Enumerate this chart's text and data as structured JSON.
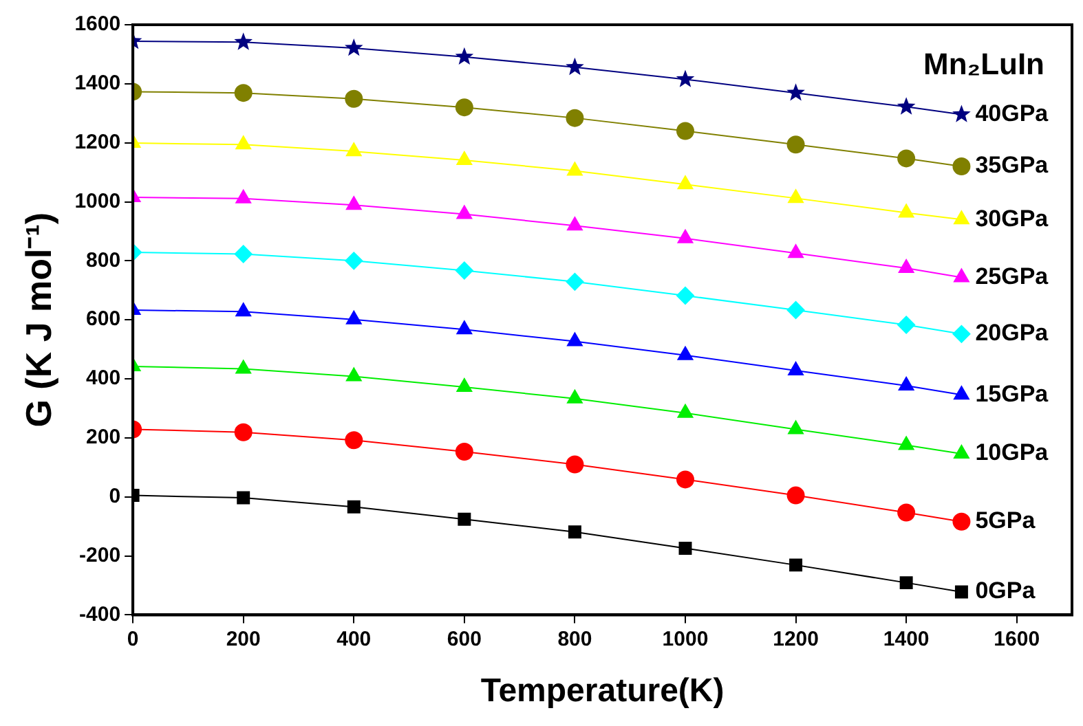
{
  "chart_data": {
    "type": "line",
    "title": "Mn₂LuIn",
    "xlabel": "Temperature(K)",
    "ylabel": "G (K J mol⁻¹)",
    "x": [
      0,
      200,
      400,
      600,
      800,
      1000,
      1200,
      1400,
      1500
    ],
    "xlim": [
      0,
      1700
    ],
    "xticks": [
      0,
      200,
      400,
      600,
      800,
      1000,
      1200,
      1400,
      1600
    ],
    "ylim": [
      -400,
      1600
    ],
    "yticks": [
      -400,
      -200,
      0,
      200,
      400,
      600,
      800,
      1000,
      1200,
      1400,
      1600
    ],
    "grid": false,
    "legend": false,
    "line_style": "solid",
    "series": [
      {
        "name": "0GPa",
        "color": "#000000",
        "marker": "square",
        "values": [
          5,
          -3,
          -34,
          -76,
          -119,
          -174,
          -231,
          -291,
          -322
        ]
      },
      {
        "name": "5GPa",
        "color": "#ff0000",
        "marker": "circle",
        "values": [
          229,
          219,
          192,
          153,
          110,
          59,
          5,
          -53,
          -84
        ]
      },
      {
        "name": "10GPa",
        "color": "#00ee00",
        "marker": "triangle",
        "values": [
          442,
          434,
          408,
          372,
          333,
          284,
          229,
          175,
          146
        ]
      },
      {
        "name": "15GPa",
        "color": "#0000ff",
        "marker": "triangle",
        "values": [
          633,
          628,
          601,
          567,
          527,
          480,
          428,
          377,
          346
        ]
      },
      {
        "name": "20GPa",
        "color": "#00ffff",
        "marker": "diamond",
        "values": [
          829,
          823,
          800,
          767,
          729,
          682,
          633,
          583,
          552
        ]
      },
      {
        "name": "25GPa",
        "color": "#ff00ff",
        "marker": "triangle",
        "values": [
          1015,
          1011,
          989,
          958,
          919,
          876,
          826,
          775,
          744
        ]
      },
      {
        "name": "30GPa",
        "color": "#ffff00",
        "marker": "triangle",
        "values": [
          1199,
          1194,
          1171,
          1141,
          1105,
          1059,
          1012,
          963,
          940
        ]
      },
      {
        "name": "35GPa",
        "color": "#808000",
        "marker": "circle",
        "values": [
          1373,
          1369,
          1349,
          1320,
          1284,
          1240,
          1194,
          1147,
          1120
        ]
      },
      {
        "name": "40GPa",
        "color": "#000080",
        "marker": "star",
        "values": [
          1544,
          1541,
          1521,
          1491,
          1456,
          1415,
          1369,
          1322,
          1296
        ]
      }
    ]
  }
}
